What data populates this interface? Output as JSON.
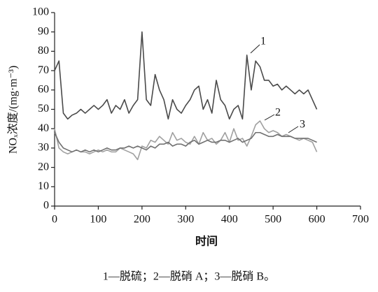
{
  "chart_data": {
    "type": "line",
    "ylabel": "NOₓ浓度/(mg·m⁻³)",
    "xlabel": "时间",
    "caption": "1—脱硫；2—脱硝 A；3—脱硝 B。",
    "annotations": [
      "1",
      "2",
      "3"
    ],
    "xlim": [
      0,
      700
    ],
    "xticks": [
      0,
      100,
      200,
      300,
      400,
      500,
      600,
      700
    ],
    "ylim": [
      0,
      100
    ],
    "yticks": [
      0,
      10,
      20,
      30,
      40,
      50,
      60,
      70,
      80,
      90,
      100
    ],
    "x": [
      0,
      10,
      20,
      30,
      40,
      50,
      60,
      70,
      80,
      90,
      100,
      110,
      120,
      130,
      140,
      150,
      160,
      170,
      180,
      190,
      200,
      210,
      220,
      230,
      240,
      250,
      260,
      270,
      280,
      290,
      300,
      310,
      320,
      330,
      340,
      350,
      360,
      370,
      380,
      390,
      400,
      410,
      420,
      430,
      440,
      450,
      460,
      470,
      480,
      490,
      500,
      510,
      520,
      530,
      540,
      550,
      560,
      570,
      580,
      590,
      600
    ],
    "series": [
      {
        "color": "#4a4a4a",
        "values": [
          70,
          75,
          48,
          45,
          47,
          48,
          50,
          48,
          50,
          52,
          50,
          52,
          55,
          48,
          52,
          50,
          55,
          48,
          52,
          55,
          90,
          55,
          52,
          68,
          60,
          55,
          45,
          55,
          50,
          48,
          52,
          55,
          60,
          62,
          50,
          55,
          48,
          65,
          55,
          52,
          45,
          50,
          52,
          45,
          78,
          60,
          75,
          72,
          65,
          65,
          62,
          63,
          60,
          62,
          60,
          58,
          60,
          58,
          60,
          55,
          50
        ]
      },
      {
        "color": "#a0a0a0",
        "values": [
          40,
          30,
          28,
          27,
          28,
          29,
          28,
          28,
          27,
          28,
          29,
          28,
          29,
          28,
          28,
          30,
          29,
          28,
          27,
          24,
          31,
          30,
          34,
          33,
          36,
          34,
          32,
          38,
          34,
          35,
          33,
          32,
          36,
          32,
          38,
          34,
          35,
          32,
          34,
          38,
          33,
          40,
          34,
          35,
          31,
          36,
          42,
          44,
          40,
          38,
          39,
          38,
          36,
          37,
          36,
          35,
          34,
          35,
          34,
          33,
          28
        ]
      },
      {
        "color": "#707070",
        "values": [
          38,
          33,
          30,
          29,
          28,
          29,
          28,
          29,
          28,
          29,
          28,
          29,
          30,
          29,
          29,
          30,
          30,
          31,
          30,
          31,
          30,
          29,
          31,
          30,
          32,
          32,
          33,
          31,
          32,
          32,
          31,
          33,
          34,
          32,
          33,
          34,
          33,
          33,
          34,
          34,
          33,
          34,
          35,
          33,
          34,
          35,
          38,
          38,
          37,
          36,
          36,
          37,
          36,
          36,
          36,
          35,
          35,
          35,
          35,
          34,
          33
        ]
      }
    ]
  }
}
